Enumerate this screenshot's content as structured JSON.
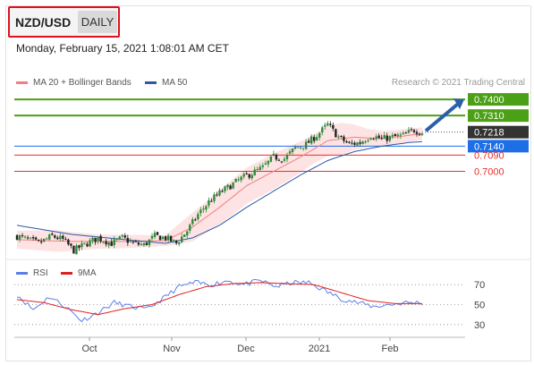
{
  "header": {
    "symbol": "NZD/USD",
    "period": "DAILY"
  },
  "datetime": "Monday, February 15, 2021 1:08:01 AM CET",
  "legend_main": [
    {
      "label": "MA 20 + Bollinger Bands",
      "color": "#f08080"
    },
    {
      "label": "MA 50",
      "color": "#2b5aa8"
    }
  ],
  "credit": "Research © 2021 Trading Central",
  "legend_rsi": [
    {
      "label": "RSI",
      "color": "#5b7fe8"
    },
    {
      "label": "9MA",
      "color": "#e02020"
    }
  ],
  "colors": {
    "up": "#2e8b3a",
    "down": "#222222",
    "bands": "#fde3e3",
    "resistance": "#4ca015",
    "pivot": "#1e6ee8",
    "support": "#e8302a",
    "current": "#333333",
    "arrow": "#2b5fa8"
  },
  "chart_data": [
    {
      "type": "candlestick",
      "title": "NZD/USD",
      "x_labels": [
        "Oct",
        "Nov",
        "Dec",
        "2021",
        "Feb"
      ],
      "price_range": [
        0.656,
        0.748
      ],
      "levels": [
        {
          "value": 0.74,
          "label": "0.7400",
          "kind": "resistance"
        },
        {
          "value": 0.731,
          "label": "0.7310",
          "kind": "resistance"
        },
        {
          "value": 0.7218,
          "label": "0.7218",
          "kind": "current"
        },
        {
          "value": 0.714,
          "label": "0.7140",
          "kind": "pivot"
        },
        {
          "value": 0.709,
          "label": "0.7090",
          "kind": "support"
        },
        {
          "value": 0.7,
          "label": "0.7000",
          "kind": "support"
        }
      ],
      "close_anchors": [
        [
          0,
          0.664
        ],
        [
          4,
          0.662
        ],
        [
          8,
          0.66
        ],
        [
          13,
          0.664
        ],
        [
          17,
          0.662
        ],
        [
          21,
          0.656
        ],
        [
          26,
          0.66
        ],
        [
          30,
          0.663
        ],
        [
          35,
          0.66
        ],
        [
          39,
          0.663
        ],
        [
          43,
          0.66
        ],
        [
          47,
          0.659
        ],
        [
          51,
          0.664
        ],
        [
          55,
          0.663
        ],
        [
          59,
          0.66
        ],
        [
          63,
          0.667
        ],
        [
          67,
          0.676
        ],
        [
          71,
          0.683
        ],
        [
          75,
          0.688
        ],
        [
          79,
          0.692
        ],
        [
          83,
          0.696
        ],
        [
          87,
          0.699
        ],
        [
          91,
          0.702
        ],
        [
          95,
          0.708
        ],
        [
          99,
          0.707
        ],
        [
          103,
          0.713
        ],
        [
          107,
          0.715
        ],
        [
          111,
          0.72
        ],
        [
          115,
          0.726
        ],
        [
          119,
          0.719
        ],
        [
          123,
          0.715
        ],
        [
          127,
          0.716
        ],
        [
          131,
          0.72
        ],
        [
          135,
          0.718
        ],
        [
          139,
          0.719
        ],
        [
          143,
          0.72
        ],
        [
          147,
          0.723
        ],
        [
          150,
          0.7218
        ]
      ],
      "ma20_anchors": [
        [
          0,
          0.662
        ],
        [
          20,
          0.661
        ],
        [
          40,
          0.661
        ],
        [
          55,
          0.6615
        ],
        [
          65,
          0.669
        ],
        [
          75,
          0.68
        ],
        [
          85,
          0.692
        ],
        [
          95,
          0.7
        ],
        [
          105,
          0.708
        ],
        [
          115,
          0.717
        ],
        [
          125,
          0.719
        ],
        [
          135,
          0.718
        ],
        [
          145,
          0.72
        ],
        [
          150,
          0.721
        ]
      ],
      "ma50_anchors": [
        [
          0,
          0.67
        ],
        [
          20,
          0.665
        ],
        [
          40,
          0.662
        ],
        [
          55,
          0.66
        ],
        [
          65,
          0.663
        ],
        [
          75,
          0.67
        ],
        [
          85,
          0.68
        ],
        [
          95,
          0.689
        ],
        [
          105,
          0.698
        ],
        [
          115,
          0.706
        ],
        [
          125,
          0.711
        ],
        [
          135,
          0.714
        ],
        [
          145,
          0.716
        ],
        [
          150,
          0.7165
        ]
      ],
      "band_halfwidth_anchors": [
        [
          0,
          0.005
        ],
        [
          15,
          0.006
        ],
        [
          30,
          0.004
        ],
        [
          45,
          0.0035
        ],
        [
          55,
          0.003
        ],
        [
          65,
          0.008
        ],
        [
          80,
          0.01
        ],
        [
          95,
          0.01
        ],
        [
          110,
          0.008
        ],
        [
          120,
          0.009
        ],
        [
          130,
          0.005
        ],
        [
          140,
          0.004
        ],
        [
          150,
          0.0035
        ]
      ],
      "projection": {
        "from": 0.7225,
        "to": 0.74
      }
    },
    {
      "type": "line",
      "title": "RSI",
      "y_ticks": [
        70,
        50,
        30
      ],
      "ylim": [
        20,
        80
      ],
      "series": [
        {
          "name": "RSI",
          "anchors": [
            [
              0,
              60
            ],
            [
              6,
              45
            ],
            [
              12,
              58
            ],
            [
              18,
              48
            ],
            [
              24,
              34
            ],
            [
              30,
              42
            ],
            [
              36,
              52
            ],
            [
              42,
              48
            ],
            [
              48,
              45
            ],
            [
              54,
              56
            ],
            [
              60,
              68
            ],
            [
              66,
              72
            ],
            [
              72,
              70
            ],
            [
              78,
              74
            ],
            [
              84,
              70
            ],
            [
              90,
              74
            ],
            [
              96,
              68
            ],
            [
              102,
              72
            ],
            [
              108,
              72
            ],
            [
              114,
              64
            ],
            [
              120,
              56
            ],
            [
              126,
              52
            ],
            [
              132,
              48
            ],
            [
              138,
              50
            ],
            [
              144,
              52
            ],
            [
              150,
              52
            ]
          ]
        },
        {
          "name": "9MA",
          "anchors": [
            [
              0,
              55
            ],
            [
              10,
              52
            ],
            [
              20,
              45
            ],
            [
              30,
              40
            ],
            [
              40,
              46
            ],
            [
              50,
              50
            ],
            [
              60,
              60
            ],
            [
              70,
              68
            ],
            [
              80,
              71
            ],
            [
              90,
              72
            ],
            [
              100,
              71
            ],
            [
              110,
              70
            ],
            [
              120,
              62
            ],
            [
              130,
              54
            ],
            [
              140,
              51
            ],
            [
              150,
              51
            ]
          ]
        }
      ]
    }
  ]
}
